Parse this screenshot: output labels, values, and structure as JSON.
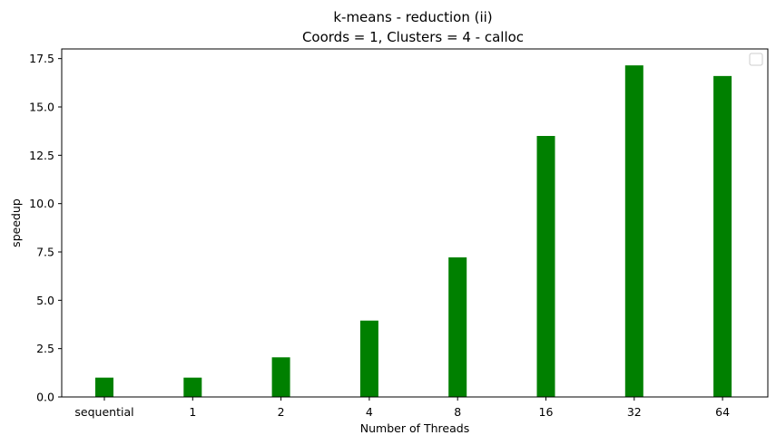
{
  "chart_data": {
    "type": "bar",
    "title": "k-means - reduction  (ii)",
    "subtitle": "Coords = 1, Clusters = 4 - calloc",
    "xlabel": "Number of Threads",
    "ylabel": "speedup",
    "categories": [
      "sequential",
      "1",
      "2",
      "4",
      "8",
      "16",
      "32",
      "64"
    ],
    "values": [
      1.0,
      1.0,
      2.05,
      3.95,
      7.22,
      13.5,
      17.15,
      16.6
    ],
    "ylim": [
      0,
      18.0
    ],
    "yticks": [
      "0.0",
      "2.5",
      "5.0",
      "7.5",
      "10.0",
      "12.5",
      "15.0",
      "17.5"
    ],
    "bar_color": "#008000",
    "grid": false,
    "legend": {
      "placement": "top-right",
      "entries": []
    }
  }
}
